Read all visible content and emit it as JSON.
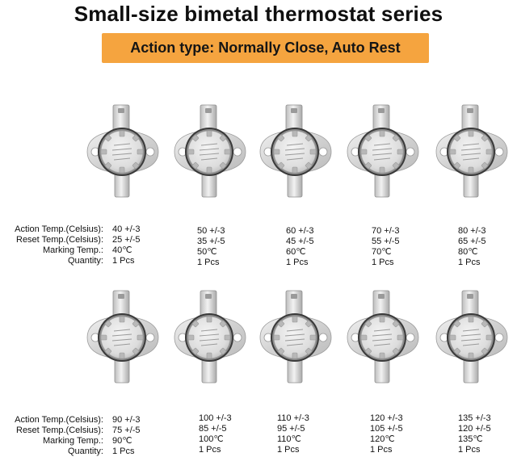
{
  "title": "Small-size bimetal thermostat series",
  "banner": "Action type: Normally Close, Auto Rest",
  "labels": {
    "action": "Action Temp.(Celsius):",
    "reset": "Reset  Temp.(Celsius):",
    "marking": "Marking Temp.:",
    "quantity": "Quantity:"
  },
  "rows": [
    {
      "items": [
        {
          "action": "40 +/-3",
          "reset": "25 +/-5",
          "marking": "40℃",
          "quantity": "1 Pcs"
        },
        {
          "action": "50 +/-3",
          "reset": "35 +/-5",
          "marking": "50℃",
          "quantity": "1 Pcs"
        },
        {
          "action": "60 +/-3",
          "reset": "45 +/-5",
          "marking": "60℃",
          "quantity": "1 Pcs"
        },
        {
          "action": "70 +/-3",
          "reset": "55 +/-5",
          "marking": "70℃",
          "quantity": "1 Pcs"
        },
        {
          "action": "80 +/-3",
          "reset": "65 +/-5",
          "marking": "80℃",
          "quantity": "1 Pcs"
        }
      ]
    },
    {
      "items": [
        {
          "action": "90 +/-3",
          "reset": "75 +/-5",
          "marking": "90℃",
          "quantity": "1 Pcs"
        },
        {
          "action": "100 +/-3",
          "reset": "85 +/-5",
          "marking": "100℃",
          "quantity": "1 Pcs"
        },
        {
          "action": "110 +/-3",
          "reset": "95 +/-5",
          "marking": "110℃",
          "quantity": "1 Pcs"
        },
        {
          "action": "120 +/-3",
          "reset": "105 +/-5",
          "marking": "120℃",
          "quantity": "1 Pcs"
        },
        {
          "action": "135 +/-3",
          "reset": "120 +/-5",
          "marking": "135℃",
          "quantity": "1 Pcs"
        }
      ]
    }
  ],
  "colors": {
    "banner": "#f5a43f",
    "metal": "#c8c8c8",
    "cap": "#e4e4e4"
  }
}
